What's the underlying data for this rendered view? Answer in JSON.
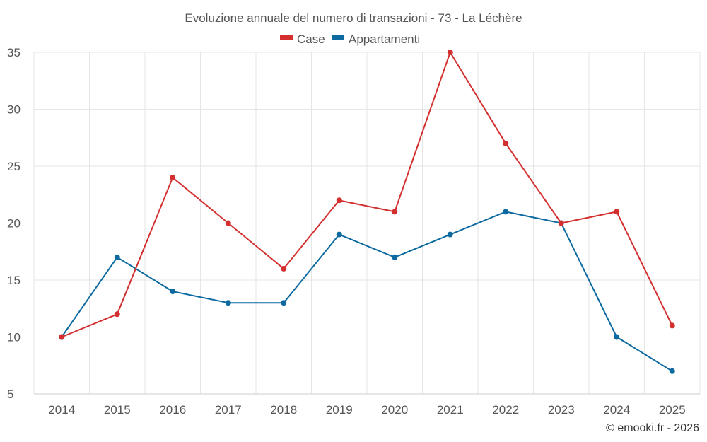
{
  "chart_data": {
    "type": "line",
    "title": "Evoluzione annuale del numero di transazioni - 73 - La Léchère",
    "categories": [
      "2014",
      "2015",
      "2016",
      "2017",
      "2018",
      "2019",
      "2020",
      "2021",
      "2022",
      "2023",
      "2024",
      "2025"
    ],
    "series": [
      {
        "name": "Case",
        "color": "#d32f2f",
        "values": [
          10,
          12,
          24,
          20,
          16,
          22,
          21,
          35,
          27,
          20,
          21,
          11
        ]
      },
      {
        "name": "Appartamenti",
        "color": "#0d6aa0",
        "values": [
          10,
          17,
          14,
          13,
          13,
          19,
          17,
          19,
          21,
          20,
          10,
          7
        ]
      }
    ],
    "ylim": [
      5,
      35
    ],
    "yticks": [
      5,
      10,
      15,
      20,
      25,
      30,
      35
    ],
    "grid": true,
    "legend": "top-center",
    "xlabel": "",
    "ylabel": ""
  },
  "credit": "© emooki.fr - 2026"
}
